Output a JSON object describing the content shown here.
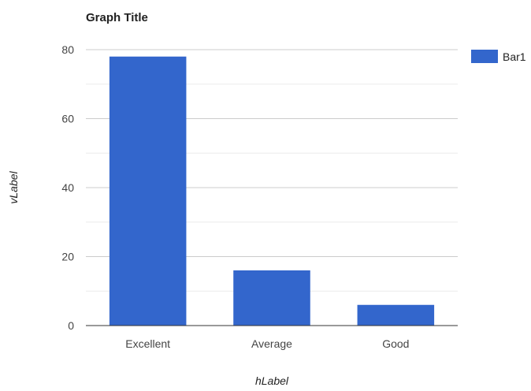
{
  "chart_data": {
    "type": "bar",
    "title": "Graph Title",
    "xlabel": "hLabel",
    "ylabel": "vLabel",
    "categories": [
      "Excellent",
      "Average",
      "Good"
    ],
    "series": [
      {
        "name": "Bar1",
        "values": [
          78,
          16,
          6
        ],
        "color": "#3366cc"
      }
    ],
    "ylim": [
      0,
      80
    ],
    "yticks": [
      "0",
      "20",
      "40",
      "60",
      "80"
    ],
    "grid": true,
    "legend_position": "right"
  }
}
